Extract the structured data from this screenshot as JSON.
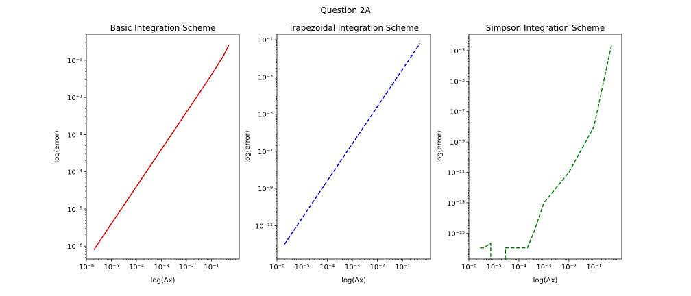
{
  "figure": {
    "title": "Question 2A"
  },
  "chart_data": [
    {
      "type": "line",
      "title": "Basic Integration Scheme",
      "xlabel": "log(Δx)",
      "ylabel": "log(error)",
      "xscale": "log",
      "yscale": "log",
      "xlim": [
        1e-06,
        1.3
      ],
      "ylim": [
        4.5e-07,
        0.5
      ],
      "xticks": [
        {
          "exp": -6
        },
        {
          "exp": -5
        },
        {
          "exp": -4
        },
        {
          "exp": -3
        },
        {
          "exp": -2
        },
        {
          "exp": -1
        }
      ],
      "yticks": [
        {
          "exp": -6
        },
        {
          "exp": -5
        },
        {
          "exp": -4
        },
        {
          "exp": -3
        },
        {
          "exp": -2
        },
        {
          "exp": -1
        }
      ],
      "grid": false,
      "series": [
        {
          "color": "#cc0000",
          "dash": "solid",
          "x": [
            2e-06,
            1e-05,
            0.0001,
            0.001,
            0.01,
            0.05,
            0.1,
            0.2,
            0.3,
            0.4,
            0.5
          ],
          "y": [
            8e-07,
            4e-06,
            4e-05,
            0.0004,
            0.004,
            0.02,
            0.04,
            0.085,
            0.13,
            0.19,
            0.26
          ]
        }
      ]
    },
    {
      "type": "line",
      "title": "Trapezoidal Integration Scheme",
      "xlabel": "log(Δx)",
      "ylabel": "log(error)",
      "xscale": "log",
      "yscale": "log",
      "xlim": [
        1e-06,
        1.3
      ],
      "ylim": [
        1.6e-13,
        0.2
      ],
      "xticks": [
        {
          "exp": -6
        },
        {
          "exp": -5
        },
        {
          "exp": -4
        },
        {
          "exp": -3
        },
        {
          "exp": -2
        },
        {
          "exp": -1
        }
      ],
      "yticks": [
        {
          "exp": -11
        },
        {
          "exp": -9
        },
        {
          "exp": -7
        },
        {
          "exp": -5
        },
        {
          "exp": -3
        },
        {
          "exp": -1
        }
      ],
      "grid": false,
      "series": [
        {
          "color": "#0000cc",
          "dash": "dashed",
          "x": [
            2e-06,
            0.5
          ],
          "y": [
            1e-12,
            0.065
          ]
        }
      ]
    },
    {
      "type": "line",
      "title": "Simpson Integration Scheme",
      "xlabel": "log(Δx)",
      "ylabel": "log(error)",
      "xscale": "log",
      "yscale": "log",
      "xlim": [
        1e-06,
        1.3
      ],
      "ylim": [
        2e-17,
        0.012
      ],
      "xticks": [
        {
          "exp": -6
        },
        {
          "exp": -5
        },
        {
          "exp": -4
        },
        {
          "exp": -3
        },
        {
          "exp": -2
        },
        {
          "exp": -1
        }
      ],
      "yticks": [
        {
          "exp": -15
        },
        {
          "exp": -13
        },
        {
          "exp": -11
        },
        {
          "exp": -9
        },
        {
          "exp": -7
        },
        {
          "exp": -5
        },
        {
          "exp": -3
        }
      ],
      "grid": false,
      "series": [
        {
          "color": "#008000",
          "dash": "dashed",
          "segments": [
            {
              "x": [
                2.8e-06,
                4e-06,
                5.5e-06,
                7.5e-06,
                7.5e-06
              ],
              "y": [
                1.1e-16,
                1.1e-16,
                1.6e-16,
                2.2e-16,
                2e-17
              ]
            },
            {
              "x": [
                2.9e-05,
                2.9e-05,
                5e-05,
                0.0001,
                0.00022,
                0.0004,
                0.001,
                0.01,
                0.1,
                0.5
              ],
              "y": [
                2e-17,
                1.1e-16,
                1.1e-16,
                1.1e-16,
                1.1e-16,
                1.2e-15,
                1e-13,
                1e-11,
                1e-08,
                0.0022
              ]
            }
          ]
        }
      ]
    }
  ]
}
